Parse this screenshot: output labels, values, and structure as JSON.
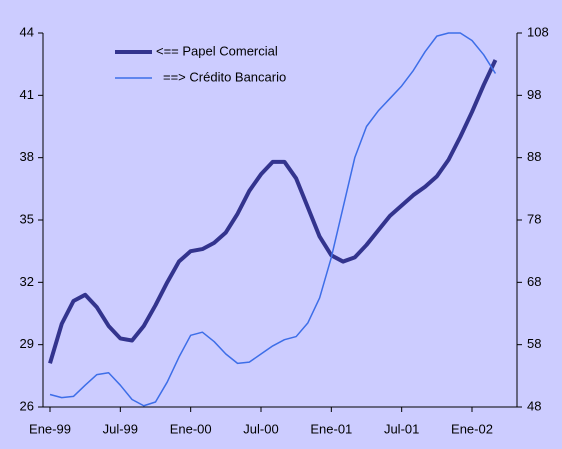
{
  "chart_data": {
    "type": "line",
    "categories": [
      "Ene-99",
      null,
      null,
      null,
      null,
      null,
      "Jul-99",
      null,
      null,
      null,
      null,
      null,
      "Ene-00",
      null,
      null,
      null,
      null,
      null,
      "Jul-00",
      null,
      null,
      null,
      null,
      null,
      "Ene-01",
      null,
      null,
      null,
      null,
      null,
      "Jul-01",
      null,
      null,
      null,
      null,
      null,
      "Ene-02",
      null,
      null
    ],
    "series": [
      {
        "name": "<== Papel Comercial",
        "color": "#33348e",
        "axis": "y",
        "values": [
          28.1,
          30.0,
          31.1,
          31.4,
          30.8,
          29.9,
          29.3,
          29.2,
          29.9,
          30.9,
          32.0,
          33.0,
          33.5,
          33.6,
          33.9,
          34.4,
          35.3,
          36.4,
          37.2,
          37.8,
          37.8,
          37.0,
          35.6,
          34.2,
          33.3,
          33.0,
          33.2,
          33.8,
          34.5,
          35.2,
          35.7,
          36.2,
          36.6,
          37.1,
          37.9,
          39.0,
          40.2,
          41.5,
          42.7
        ]
      },
      {
        "name": "==> Crédito Bancario",
        "color": "#3d6ee8",
        "axis": "y2",
        "values": [
          50.0,
          49.5,
          49.7,
          51.5,
          53.2,
          53.5,
          51.5,
          49.2,
          48.2,
          48.8,
          52.0,
          56.0,
          59.5,
          60.0,
          58.5,
          56.5,
          55.0,
          55.2,
          56.5,
          57.8,
          58.8,
          59.3,
          61.5,
          65.5,
          72.0,
          80.0,
          88.0,
          93.0,
          95.5,
          97.5,
          99.5,
          102.0,
          105.0,
          107.5,
          108.0,
          108.0,
          106.8,
          104.5,
          101.5
        ]
      }
    ],
    "ylim": [
      26,
      44
    ],
    "yticks": [
      26,
      29,
      32,
      35,
      38,
      41,
      44
    ],
    "y2lim": [
      48,
      108
    ],
    "y2ticks": [
      48,
      58,
      68,
      78,
      88,
      98,
      108
    ]
  }
}
